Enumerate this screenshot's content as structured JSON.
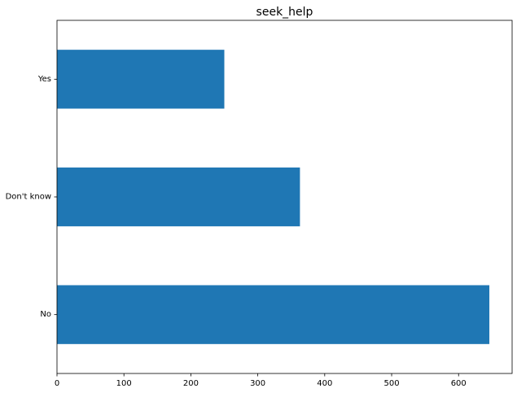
{
  "chart_data": {
    "type": "bar",
    "orientation": "horizontal",
    "title": "seek_help",
    "xlabel": "",
    "ylabel": "",
    "categories": [
      "No",
      "Don't know",
      "Yes"
    ],
    "values": [
      646,
      363,
      250
    ],
    "xlim": [
      0,
      680
    ],
    "xticks": [
      0,
      100,
      200,
      300,
      400,
      500,
      600
    ],
    "grid": false,
    "bar_color": "#1f77b4"
  }
}
